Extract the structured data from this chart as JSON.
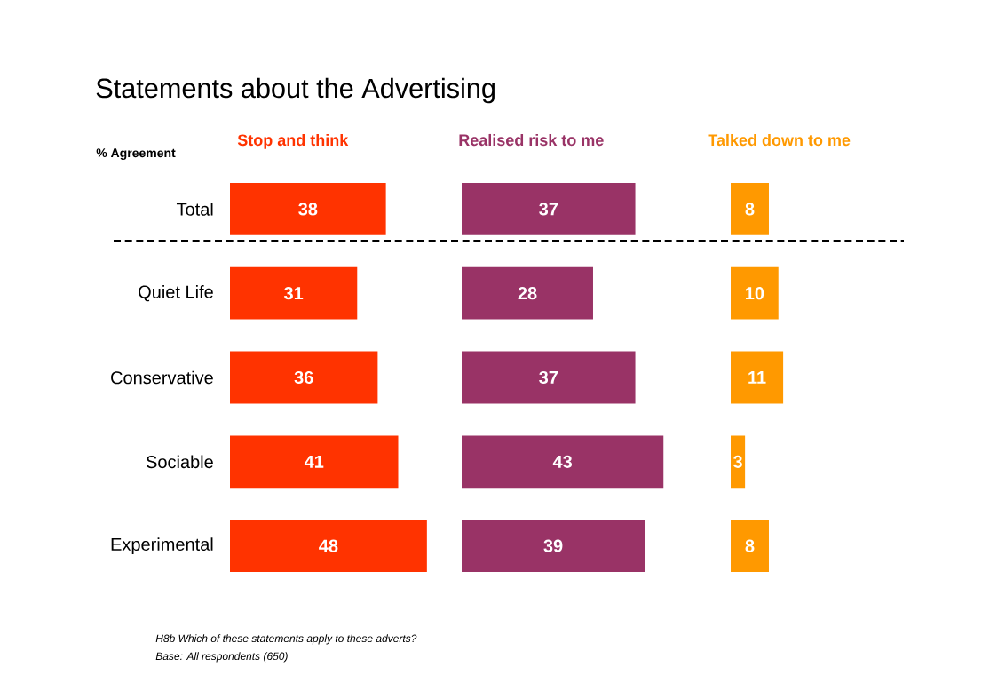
{
  "chart_data": [
    {
      "type": "bar",
      "orientation": "horizontal",
      "title": "Statements about the Advertising",
      "ylabel": "% Agreement",
      "annotations": [
        "H8b Which of these statements apply to these adverts?",
        "Base:  All respondents (650)"
      ],
      "categories": [
        "Total",
        "Quiet Life",
        "Conservative",
        "Sociable",
        "Experimental"
      ],
      "series": [
        {
          "name": "Stop and think",
          "color": "#ff3300",
          "values": [
            38,
            31,
            36,
            41,
            48
          ]
        }
      ],
      "data_labels": true,
      "legend": "top",
      "tick_labels": "y"
    },
    {
      "type": "bar",
      "orientation": "horizontal",
      "categories": [
        null,
        null,
        null,
        null,
        null
      ],
      "series": [
        {
          "name": "Realised risk to me",
          "color": "#993366",
          "values": [
            37,
            28,
            37,
            43,
            39
          ]
        }
      ],
      "data_labels": true,
      "legend": "top",
      "tick_labels": false
    },
    {
      "type": "bar",
      "orientation": "horizontal",
      "categories": [
        null,
        null,
        null,
        null,
        null
      ],
      "series": [
        {
          "name": "Talked down to me",
          "color": "#ff9900",
          "values": [
            8,
            10,
            11,
            3,
            8
          ]
        }
      ],
      "data_labels": true,
      "legend": "top",
      "tick_labels": false
    }
  ]
}
